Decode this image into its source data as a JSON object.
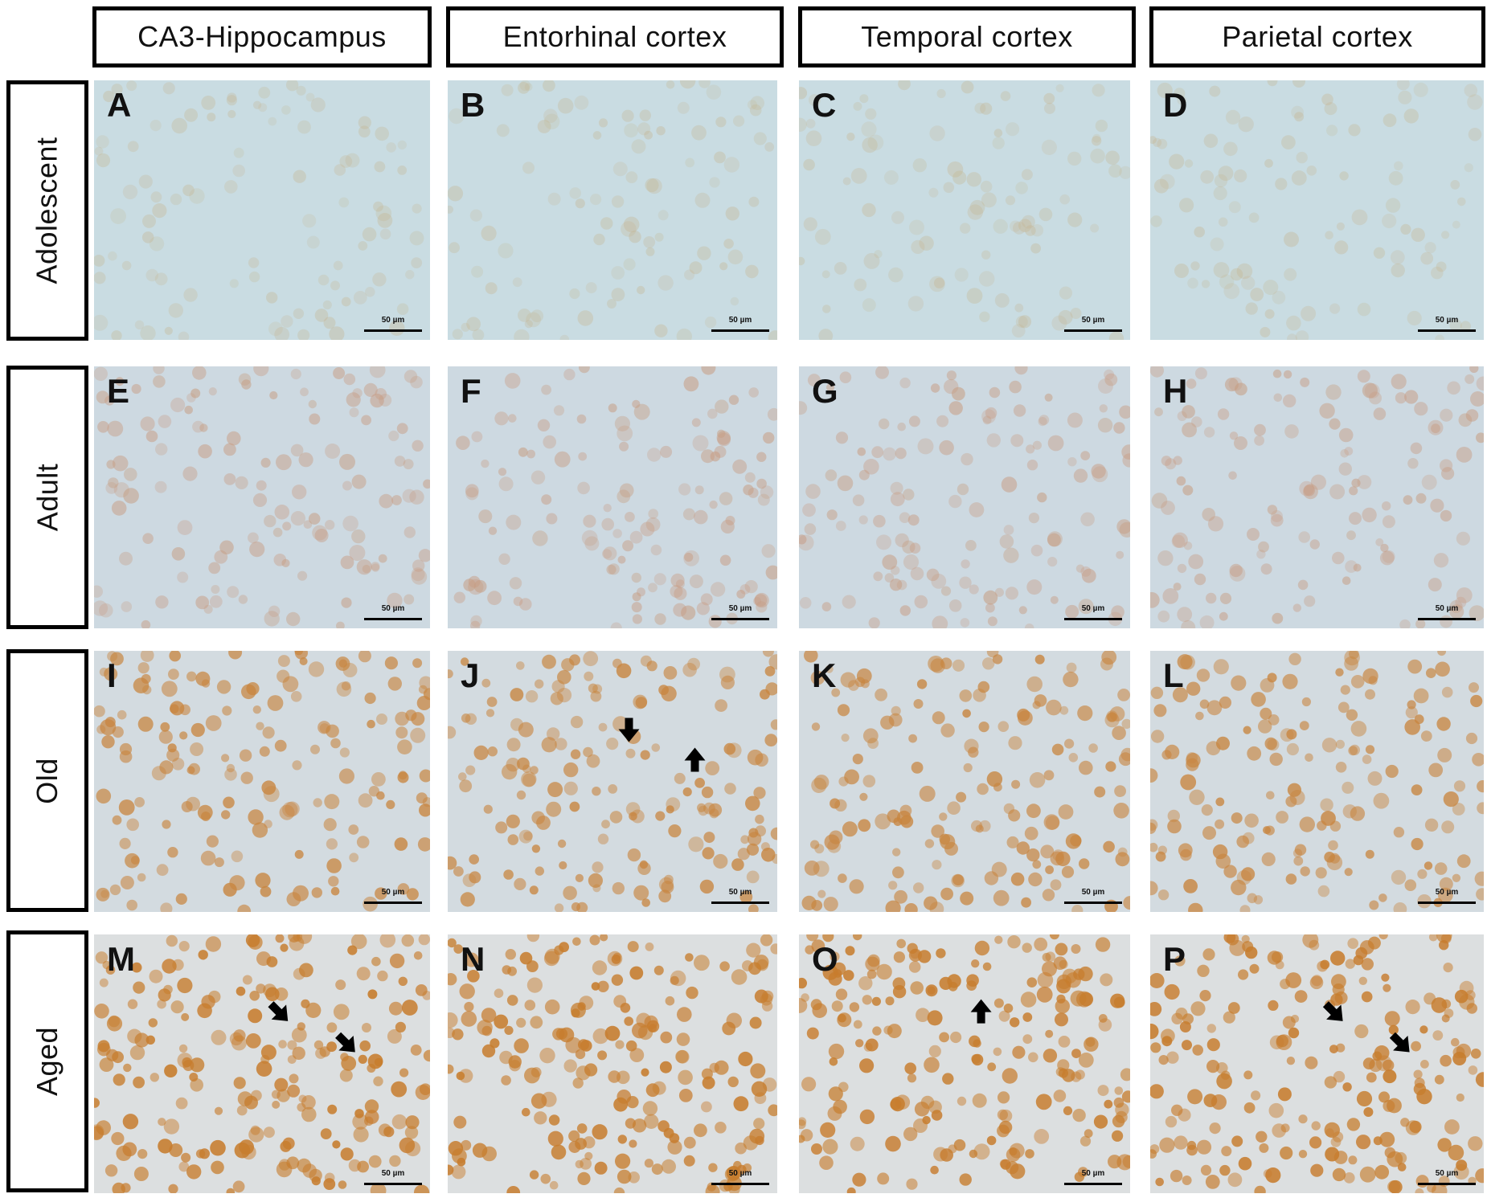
{
  "columns": [
    {
      "label": "CA3-Hippocampus"
    },
    {
      "label": "Entorhinal cortex"
    },
    {
      "label": "Temporal cortex"
    },
    {
      "label": "Parietal cortex"
    }
  ],
  "rows": [
    {
      "label": "Adolescent",
      "stain": {
        "bg": "#c9dce2",
        "cell": "#c4b38c",
        "density": 0.35,
        "opacity": 0.35
      }
    },
    {
      "label": "Adult",
      "stain": {
        "bg": "#cdd9e1",
        "cell": "#c79c82",
        "density": 0.55,
        "opacity": 0.55
      }
    },
    {
      "label": "Old",
      "stain": {
        "bg": "#d3dbe0",
        "cell": "#c8853f",
        "density": 0.75,
        "opacity": 0.8
      }
    },
    {
      "label": "Aged",
      "stain": {
        "bg": "#dcdfe0",
        "cell": "#c77d2e",
        "density": 1.0,
        "opacity": 0.9
      }
    }
  ],
  "panels": [
    {
      "letter": "A",
      "scale": "50 µm",
      "arrows": []
    },
    {
      "letter": "B",
      "scale": "50 µm",
      "arrows": []
    },
    {
      "letter": "C",
      "scale": "50 µm",
      "arrows": []
    },
    {
      "letter": "D",
      "scale": "50 µm",
      "arrows": []
    },
    {
      "letter": "E",
      "scale": "50 µm",
      "arrows": []
    },
    {
      "letter": "F",
      "scale": "50 µm",
      "arrows": []
    },
    {
      "letter": "G",
      "scale": "50 µm",
      "arrows": []
    },
    {
      "letter": "H",
      "scale": "50 µm",
      "arrows": []
    },
    {
      "letter": "I",
      "scale": "50 µm",
      "arrows": []
    },
    {
      "letter": "J",
      "scale": "50 µm",
      "arrows": [
        "down",
        "up"
      ]
    },
    {
      "letter": "K",
      "scale": "50 µm",
      "arrows": []
    },
    {
      "letter": "L",
      "scale": "50 µm",
      "arrows": []
    },
    {
      "letter": "M",
      "scale": "50 µm",
      "arrows": [
        "down-right",
        "down-right"
      ]
    },
    {
      "letter": "N",
      "scale": "50 µm",
      "arrows": []
    },
    {
      "letter": "O",
      "scale": "50 µm",
      "arrows": [
        "up"
      ]
    },
    {
      "letter": "P",
      "scale": "50 µm",
      "arrows": [
        "down-right",
        "down-right"
      ]
    }
  ]
}
